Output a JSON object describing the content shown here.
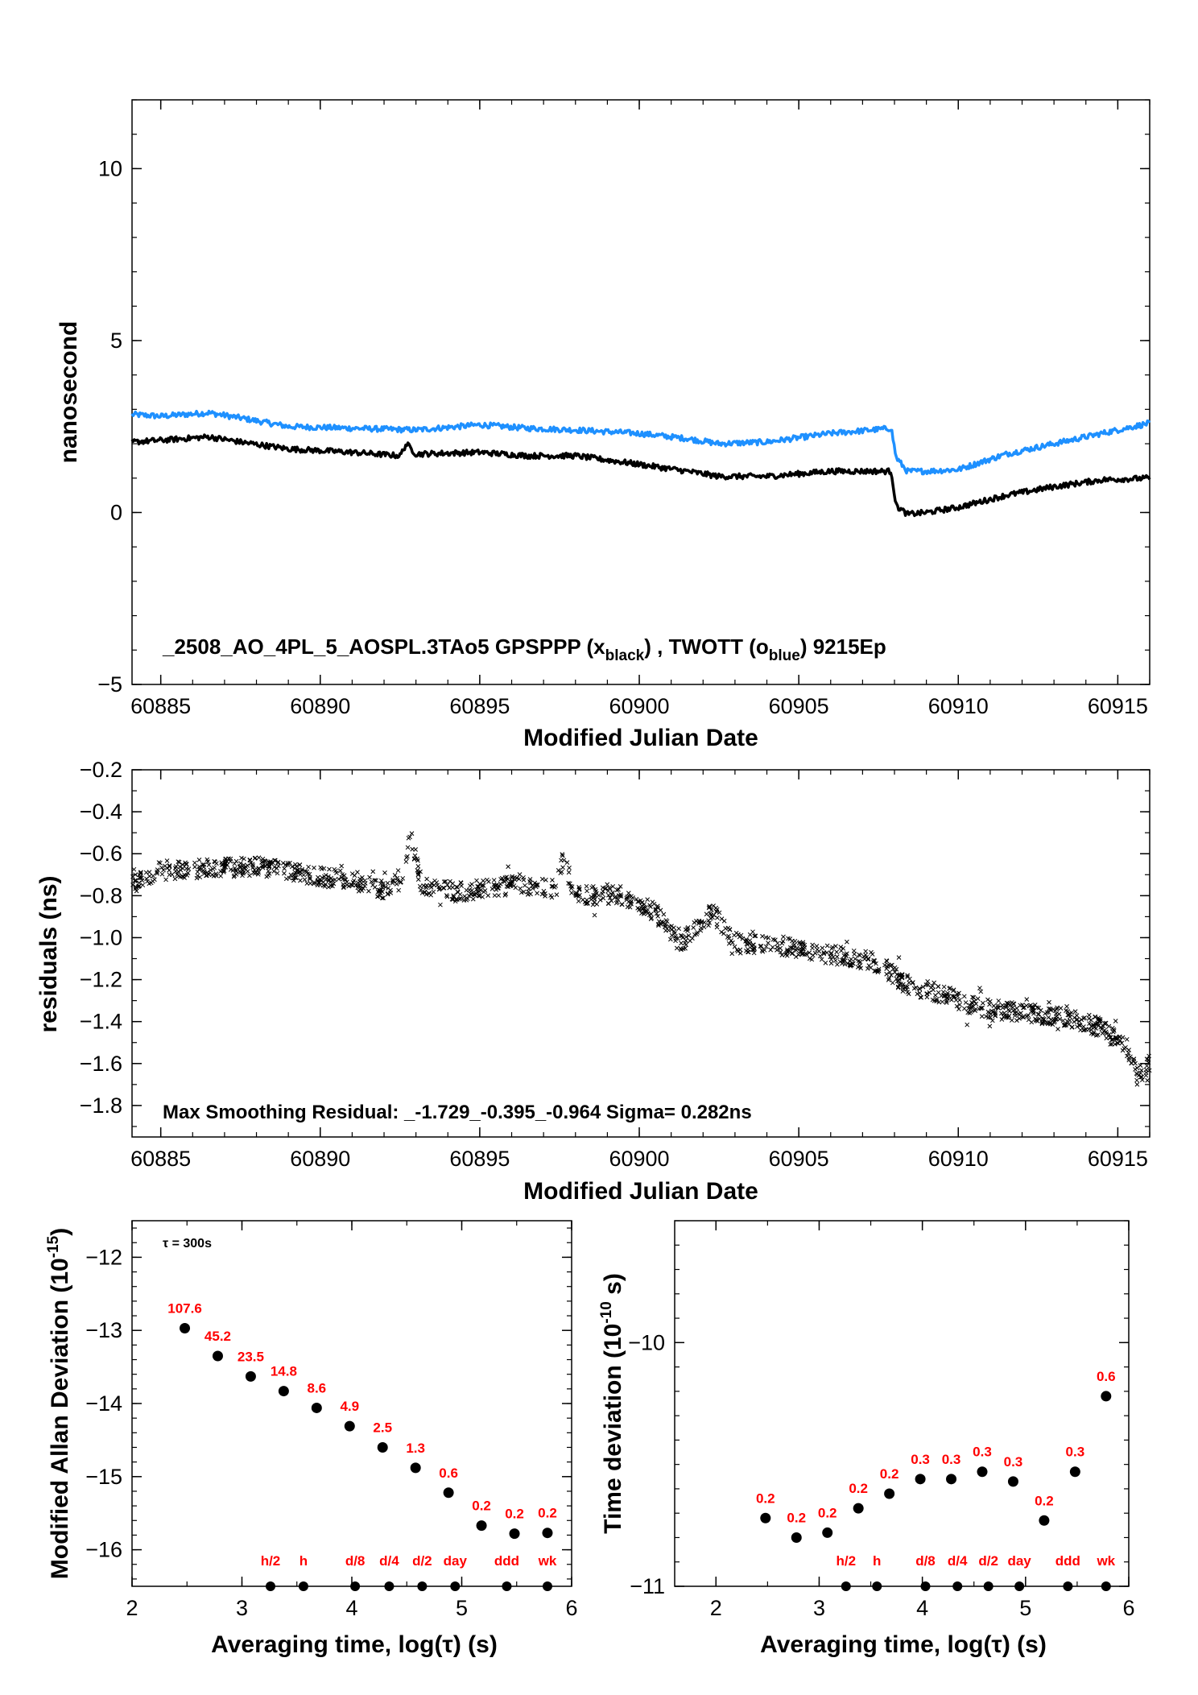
{
  "chart_data": [
    {
      "type": "line",
      "xlabel": "Modified Julian Date",
      "ylabel": "nanosecond",
      "xlim": [
        60884.1,
        60916.0
      ],
      "ylim": [
        -5,
        12
      ],
      "xticks": [
        60885,
        60890,
        60895,
        60900,
        60905,
        60910,
        60915
      ],
      "yticks": [
        -5,
        0,
        5,
        10
      ],
      "annotation": {
        "prefix": "_2508_AO_4PL_5_AOSPL.3TAo5     GPSPPP (x",
        "sub1": "black",
        "mid": ") ,  TWOTT (o",
        "sub2": "blue",
        "suffix": ")  9215Ep"
      },
      "series": [
        {
          "color": "#1e90ff",
          "x": [
            60884.1,
            60885.0,
            60886.5,
            60887.5,
            60889.0,
            60891.0,
            60893.0,
            60895.0,
            60896.5,
            60898.0,
            60900.0,
            60901.5,
            60902.5,
            60904.0,
            60906.0,
            60907.9,
            60908.05,
            60908.4,
            60909.0,
            60910.0,
            60911.5,
            60913.0,
            60914.5,
            60916.0
          ],
          "y": [
            2.85,
            2.8,
            2.9,
            2.75,
            2.5,
            2.45,
            2.4,
            2.55,
            2.45,
            2.4,
            2.3,
            2.15,
            2.0,
            2.05,
            2.3,
            2.45,
            1.6,
            1.2,
            1.2,
            1.25,
            1.7,
            2.0,
            2.3,
            2.6
          ]
        },
        {
          "color": "#000000",
          "x": [
            60884.1,
            60885.0,
            60886.5,
            60887.5,
            60889.0,
            60891.0,
            60892.5,
            60892.7,
            60893.0,
            60895.0,
            60896.5,
            60898.0,
            60900.0,
            60901.5,
            60902.5,
            60904.0,
            60906.0,
            60907.9,
            60908.05,
            60908.4,
            60909.0,
            60910.0,
            60911.5,
            60913.0,
            60914.5,
            60916.0
          ],
          "y": [
            2.05,
            2.1,
            2.2,
            2.05,
            1.85,
            1.75,
            1.65,
            2.0,
            1.7,
            1.75,
            1.65,
            1.65,
            1.4,
            1.2,
            1.05,
            1.05,
            1.2,
            1.2,
            0.2,
            -0.05,
            0.0,
            0.15,
            0.5,
            0.75,
            0.95,
            1.0
          ]
        }
      ]
    },
    {
      "type": "scatter",
      "xlabel": "Modified Julian Date",
      "ylabel": "residuals (ns)",
      "xlim": [
        60884.1,
        60916.0
      ],
      "ylim": [
        -1.95,
        -0.2
      ],
      "xticks": [
        60885,
        60890,
        60895,
        60900,
        60905,
        60910,
        60915
      ],
      "yticks": [
        -1.8,
        -1.6,
        -1.4,
        -1.2,
        -1.0,
        -0.8,
        -0.6,
        -0.4,
        -0.2
      ],
      "ytick_labels": [
        "−1.8",
        "−1.6",
        "−1.4",
        "−1.2",
        "−1.0",
        "−0.8",
        "−0.6",
        "−0.4",
        "−0.2"
      ],
      "annotation": "Max Smoothing Residual: _-1.729_-0.395_-0.964  Sigma= 0.282ns",
      "trend": {
        "x": [
          60884.1,
          60885.0,
          60886.5,
          60888.0,
          60889.5,
          60891.0,
          60892.0,
          60892.6,
          60892.8,
          60893.2,
          60894.5,
          60896.0,
          60897.4,
          60897.6,
          60898.0,
          60899.5,
          60900.5,
          60901.3,
          60902.3,
          60903.0,
          60904.5,
          60906.0,
          60907.5,
          60908.3,
          60909.5,
          60910.5,
          60912.0,
          60913.5,
          60914.5,
          60915.3,
          60915.6,
          60916.0
        ],
        "y": [
          -0.75,
          -0.68,
          -0.67,
          -0.66,
          -0.7,
          -0.73,
          -0.77,
          -0.72,
          -0.5,
          -0.76,
          -0.78,
          -0.75,
          -0.77,
          -0.62,
          -0.8,
          -0.8,
          -0.88,
          -1.03,
          -0.88,
          -1.02,
          -1.04,
          -1.08,
          -1.12,
          -1.22,
          -1.27,
          -1.33,
          -1.36,
          -1.38,
          -1.43,
          -1.52,
          -1.66,
          -1.6
        ]
      }
    },
    {
      "type": "scatter",
      "xlabel": "Averaging time, log(τ) (s)",
      "ylabel_main": "Modified Allan Deviation (10",
      "ylabel_sup": "-15",
      "ylabel_end": ")",
      "note": "τ = 300s",
      "xlim": [
        2,
        6
      ],
      "ylim": [
        -16.5,
        -11.5
      ],
      "xticks": [
        2,
        3,
        4,
        5,
        6
      ],
      "yticks": [
        -16,
        -15,
        -14,
        -13,
        -12
      ],
      "ytick_labels": [
        "−16",
        "−15",
        "−14",
        "−13",
        "−12"
      ],
      "points": [
        {
          "x": 2.48,
          "y": -12.97,
          "label": "107.6"
        },
        {
          "x": 2.78,
          "y": -13.35,
          "label": "45.2"
        },
        {
          "x": 3.08,
          "y": -13.63,
          "label": "23.5"
        },
        {
          "x": 3.38,
          "y": -13.83,
          "label": "14.8"
        },
        {
          "x": 3.68,
          "y": -14.06,
          "label": "8.6"
        },
        {
          "x": 3.98,
          "y": -14.31,
          "label": "4.9"
        },
        {
          "x": 4.28,
          "y": -14.6,
          "label": "2.5"
        },
        {
          "x": 4.58,
          "y": -14.88,
          "label": "1.3"
        },
        {
          "x": 4.88,
          "y": -15.22,
          "label": "0.6"
        },
        {
          "x": 5.18,
          "y": -15.67,
          "label": "0.2"
        },
        {
          "x": 5.48,
          "y": -15.78,
          "label": "0.2"
        },
        {
          "x": 5.78,
          "y": -15.77,
          "label": "0.2"
        }
      ],
      "markers": [
        {
          "x": 3.26,
          "label": "h/2"
        },
        {
          "x": 3.56,
          "label": "h"
        },
        {
          "x": 4.03,
          "label": "d/8"
        },
        {
          "x": 4.34,
          "label": "d/4"
        },
        {
          "x": 4.64,
          "label": "d/2"
        },
        {
          "x": 4.94,
          "label": "day"
        },
        {
          "x": 5.41,
          "label": "ddd"
        },
        {
          "x": 5.78,
          "label": "wk"
        }
      ]
    },
    {
      "type": "scatter",
      "xlabel": "Averaging time, log(τ) (s)",
      "ylabel_main": "Time deviation (10",
      "ylabel_sup": "-10",
      "ylabel_end": " s)",
      "xlim": [
        1.6,
        6.0
      ],
      "ylim": [
        -11.0,
        -9.5
      ],
      "xticks": [
        2,
        3,
        4,
        5,
        6
      ],
      "yticks": [
        -11,
        -10
      ],
      "ytick_labels": [
        "−11",
        "−10"
      ],
      "points": [
        {
          "x": 2.48,
          "y": -10.72,
          "label": "0.2"
        },
        {
          "x": 2.78,
          "y": -10.8,
          "label": "0.2"
        },
        {
          "x": 3.08,
          "y": -10.78,
          "label": "0.2"
        },
        {
          "x": 3.38,
          "y": -10.68,
          "label": "0.2"
        },
        {
          "x": 3.68,
          "y": -10.62,
          "label": "0.2"
        },
        {
          "x": 3.98,
          "y": -10.56,
          "label": "0.3"
        },
        {
          "x": 4.28,
          "y": -10.56,
          "label": "0.3"
        },
        {
          "x": 4.58,
          "y": -10.53,
          "label": "0.3"
        },
        {
          "x": 4.88,
          "y": -10.57,
          "label": "0.3"
        },
        {
          "x": 5.18,
          "y": -10.73,
          "label": "0.2"
        },
        {
          "x": 5.48,
          "y": -10.53,
          "label": "0.3"
        },
        {
          "x": 5.78,
          "y": -10.22,
          "label": "0.6"
        }
      ],
      "markers": [
        {
          "x": 3.26,
          "label": "h/2"
        },
        {
          "x": 3.56,
          "label": "h"
        },
        {
          "x": 4.03,
          "label": "d/8"
        },
        {
          "x": 4.34,
          "label": "d/4"
        },
        {
          "x": 4.64,
          "label": "d/2"
        },
        {
          "x": 4.94,
          "label": "day"
        },
        {
          "x": 5.41,
          "label": "ddd"
        },
        {
          "x": 5.78,
          "label": "wk"
        }
      ]
    }
  ]
}
